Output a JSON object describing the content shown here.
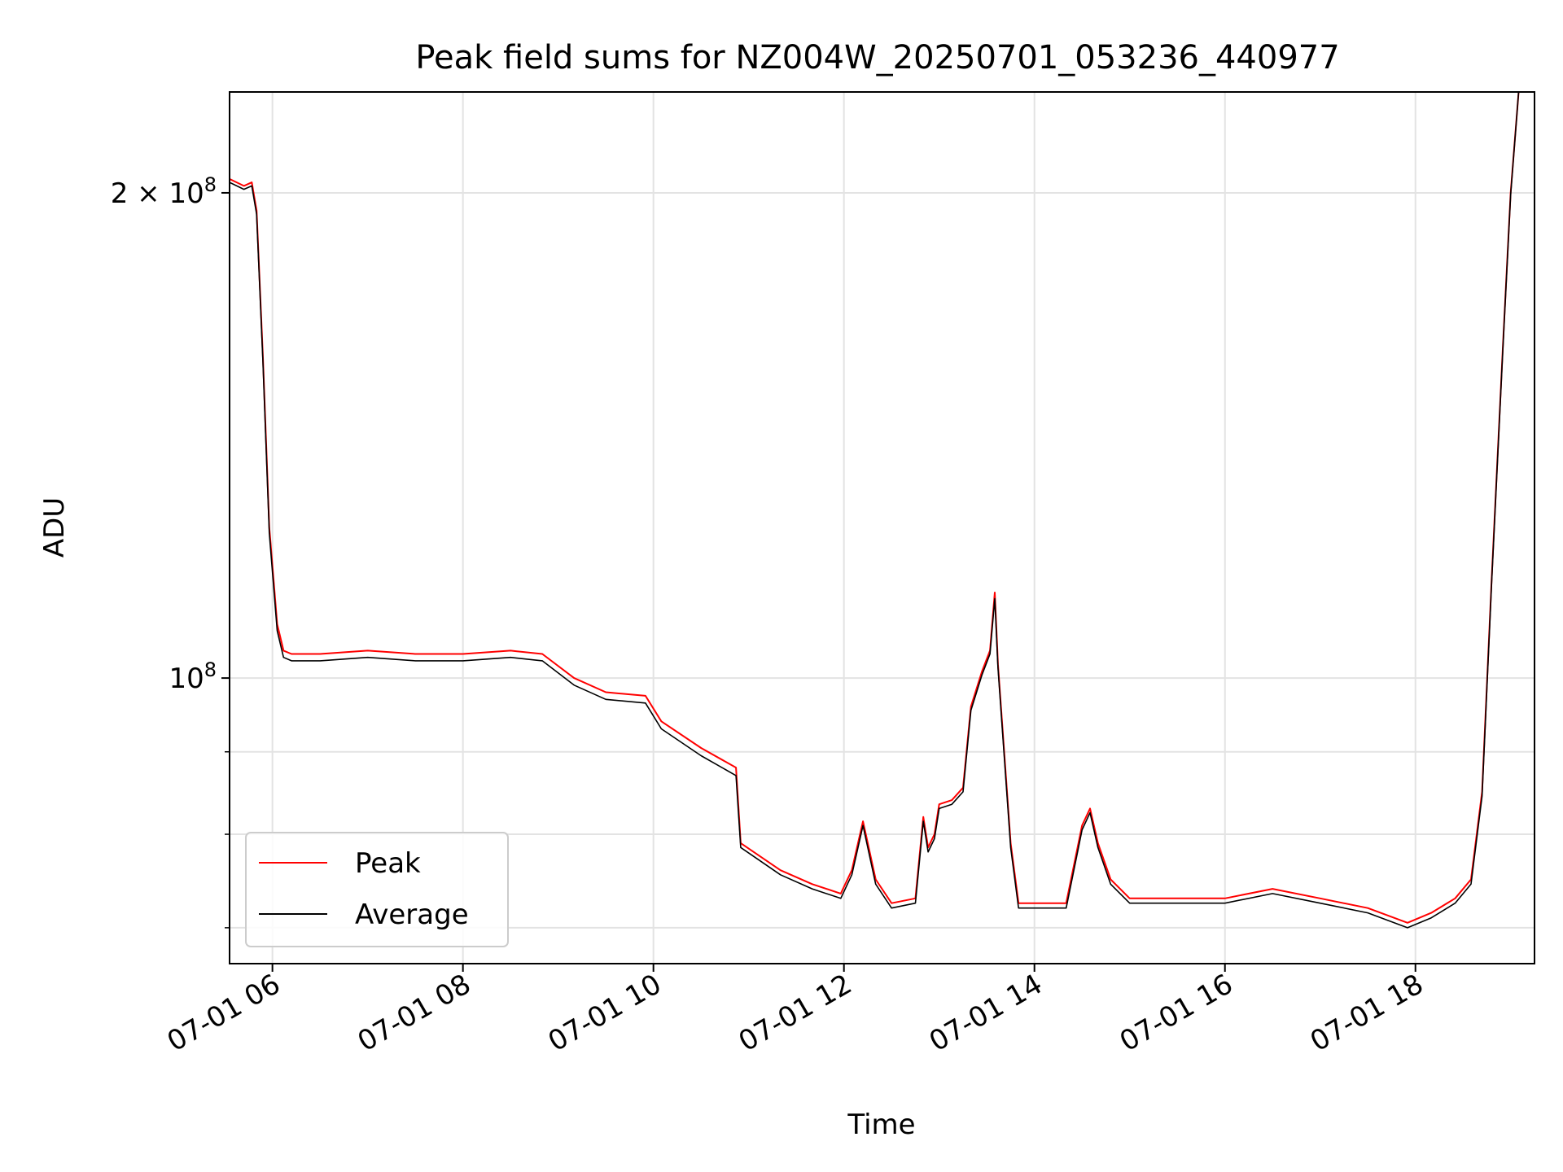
{
  "chart_data": {
    "type": "line",
    "title": "Peak field sums for NZ004W_20250701_053236_440977",
    "xlabel": "Time",
    "ylabel": "ADU",
    "yscale": "log",
    "grid": true,
    "legend_position": "lower-left",
    "xlim": [
      "2025-07-01 05:33",
      "2025-07-01 19:15"
    ],
    "ylim": [
      66500000,
      231000000
    ],
    "x_ticks": [
      {
        "value": "2025-07-01 06:00",
        "label": "07-01 06"
      },
      {
        "value": "2025-07-01 08:00",
        "label": "07-01 08"
      },
      {
        "value": "2025-07-01 10:00",
        "label": "07-01 10"
      },
      {
        "value": "2025-07-01 12:00",
        "label": "07-01 12"
      },
      {
        "value": "2025-07-01 14:00",
        "label": "07-01 14"
      },
      {
        "value": "2025-07-01 16:00",
        "label": "07-01 16"
      },
      {
        "value": "2025-07-01 18:00",
        "label": "07-01 18"
      }
    ],
    "y_major_ticks": [
      {
        "value": 100000000,
        "label_base": "10",
        "label_exp": "8"
      },
      {
        "value": 200000000,
        "label_base": "2 × 10",
        "label_exp": "8"
      }
    ],
    "y_minor_ticks": [
      70000000,
      80000000,
      90000000
    ],
    "series": [
      {
        "name": "Peak",
        "color": "#ff0000",
        "x": [
          "2025-07-01 05:33",
          "2025-07-01 05:42",
          "2025-07-01 05:47",
          "2025-07-01 05:50",
          "2025-07-01 05:54",
          "2025-07-01 05:58",
          "2025-07-01 06:03",
          "2025-07-01 06:07",
          "2025-07-01 06:12",
          "2025-07-01 06:30",
          "2025-07-01 07:00",
          "2025-07-01 07:30",
          "2025-07-01 08:00",
          "2025-07-01 08:30",
          "2025-07-01 08:50",
          "2025-07-01 09:10",
          "2025-07-01 09:30",
          "2025-07-01 09:55",
          "2025-07-01 10:05",
          "2025-07-01 10:30",
          "2025-07-01 10:52",
          "2025-07-01 10:55",
          "2025-07-01 11:20",
          "2025-07-01 11:40",
          "2025-07-01 11:58",
          "2025-07-01 12:05",
          "2025-07-01 12:12",
          "2025-07-01 12:20",
          "2025-07-01 12:30",
          "2025-07-01 12:45",
          "2025-07-01 12:50",
          "2025-07-01 12:53",
          "2025-07-01 12:57",
          "2025-07-01 13:00",
          "2025-07-01 13:08",
          "2025-07-01 13:15",
          "2025-07-01 13:20",
          "2025-07-01 13:27",
          "2025-07-01 13:32",
          "2025-07-01 13:35",
          "2025-07-01 13:37",
          "2025-07-01 13:45",
          "2025-07-01 13:50",
          "2025-07-01 14:00",
          "2025-07-01 14:20",
          "2025-07-01 14:30",
          "2025-07-01 14:35",
          "2025-07-01 14:40",
          "2025-07-01 14:48",
          "2025-07-01 15:00",
          "2025-07-01 15:30",
          "2025-07-01 16:00",
          "2025-07-01 16:30",
          "2025-07-01 17:00",
          "2025-07-01 17:30",
          "2025-07-01 17:55",
          "2025-07-01 18:10",
          "2025-07-01 18:25",
          "2025-07-01 18:35",
          "2025-07-01 18:42",
          "2025-07-01 18:48",
          "2025-07-01 18:55",
          "2025-07-01 19:00",
          "2025-07-01 19:05",
          "2025-07-01 19:15"
        ],
        "y": [
          204000000,
          202000000,
          203000000,
          195000000,
          158000000,
          124000000,
          108000000,
          104000000,
          103500000,
          103500000,
          104000000,
          103500000,
          103500000,
          104000000,
          103500000,
          100000000,
          98000000,
          97500000,
          94000000,
          90500000,
          88000000,
          79000000,
          76000000,
          74500000,
          73500000,
          76000000,
          81500000,
          75000000,
          72500000,
          73000000,
          82000000,
          78500000,
          80000000,
          83500000,
          84000000,
          85500000,
          96000000,
          101000000,
          104000000,
          113000000,
          102000000,
          79000000,
          72500000,
          72500000,
          72500000,
          81000000,
          83000000,
          79000000,
          75000000,
          73000000,
          73000000,
          73000000,
          74000000,
          73000000,
          72000000,
          70500000,
          71500000,
          73000000,
          75000000,
          85000000,
          115000000,
          160000000,
          200000000,
          231000000,
          231000000
        ]
      },
      {
        "name": "Average",
        "color": "#000000",
        "x": [
          "2025-07-01 05:33",
          "2025-07-01 05:42",
          "2025-07-01 05:47",
          "2025-07-01 05:50",
          "2025-07-01 05:54",
          "2025-07-01 05:58",
          "2025-07-01 06:03",
          "2025-07-01 06:07",
          "2025-07-01 06:12",
          "2025-07-01 06:30",
          "2025-07-01 07:00",
          "2025-07-01 07:30",
          "2025-07-01 08:00",
          "2025-07-01 08:30",
          "2025-07-01 08:50",
          "2025-07-01 09:10",
          "2025-07-01 09:30",
          "2025-07-01 09:55",
          "2025-07-01 10:05",
          "2025-07-01 10:30",
          "2025-07-01 10:52",
          "2025-07-01 10:55",
          "2025-07-01 11:20",
          "2025-07-01 11:40",
          "2025-07-01 11:58",
          "2025-07-01 12:05",
          "2025-07-01 12:12",
          "2025-07-01 12:20",
          "2025-07-01 12:30",
          "2025-07-01 12:45",
          "2025-07-01 12:50",
          "2025-07-01 12:53",
          "2025-07-01 12:57",
          "2025-07-01 13:00",
          "2025-07-01 13:08",
          "2025-07-01 13:15",
          "2025-07-01 13:20",
          "2025-07-01 13:27",
          "2025-07-01 13:32",
          "2025-07-01 13:35",
          "2025-07-01 13:37",
          "2025-07-01 13:45",
          "2025-07-01 13:50",
          "2025-07-01 14:00",
          "2025-07-01 14:20",
          "2025-07-01 14:30",
          "2025-07-01 14:35",
          "2025-07-01 14:40",
          "2025-07-01 14:48",
          "2025-07-01 15:00",
          "2025-07-01 15:30",
          "2025-07-01 16:00",
          "2025-07-01 16:30",
          "2025-07-01 17:00",
          "2025-07-01 17:30",
          "2025-07-01 17:55",
          "2025-07-01 18:10",
          "2025-07-01 18:25",
          "2025-07-01 18:35",
          "2025-07-01 18:42",
          "2025-07-01 18:48",
          "2025-07-01 18:55",
          "2025-07-01 19:00",
          "2025-07-01 19:05",
          "2025-07-01 19:15"
        ],
        "y": [
          203000000,
          201000000,
          202000000,
          194000000,
          157000000,
          123000000,
          107000000,
          103000000,
          102500000,
          102500000,
          103000000,
          102500000,
          102500000,
          103000000,
          102500000,
          99000000,
          97000000,
          96500000,
          93000000,
          89500000,
          87000000,
          78500000,
          75500000,
          74000000,
          73000000,
          75500000,
          81000000,
          74500000,
          72000000,
          72500000,
          81500000,
          78000000,
          79500000,
          83000000,
          83500000,
          85000000,
          95500000,
          100500000,
          103500000,
          112000000,
          101500000,
          78500000,
          72000000,
          72000000,
          72000000,
          80500000,
          82500000,
          78500000,
          74500000,
          72500000,
          72500000,
          72500000,
          73500000,
          72500000,
          71500000,
          70000000,
          71000000,
          72500000,
          74500000,
          84500000,
          114500000,
          159500000,
          199500000,
          231000000,
          231000000
        ]
      }
    ]
  }
}
